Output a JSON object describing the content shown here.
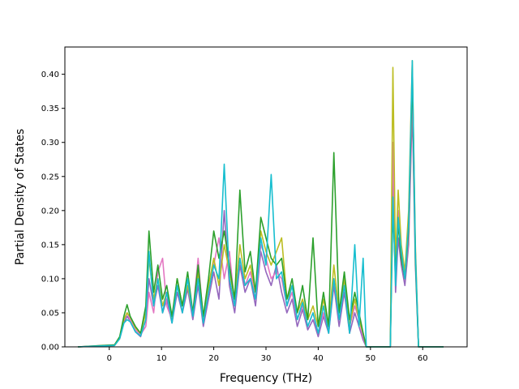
{
  "chart_data": {
    "type": "line",
    "title": "",
    "xlabel": "Frequency (THz)",
    "ylabel": "Partial Density of States",
    "xlim": [
      -8.5,
      68.5
    ],
    "ylim": [
      0,
      0.44
    ],
    "xticks": [
      0,
      10,
      20,
      30,
      40,
      50,
      60
    ],
    "yticks": [
      0.0,
      0.05,
      0.1,
      0.15,
      0.2,
      0.25,
      0.3,
      0.35,
      0.4
    ],
    "ytick_labels": [
      "0.00",
      "0.05",
      "0.10",
      "0.15",
      "0.20",
      "0.25",
      "0.30",
      "0.35",
      "0.40"
    ],
    "grid": false,
    "legend": "none",
    "series_colors": [
      "#9467bd",
      "#8c564b",
      "#e377c2",
      "#7f7f7f",
      "#ff7f0e",
      "#bcbd22",
      "#2ca02c",
      "#17becf"
    ],
    "series": [
      {
        "color": "#9467bd",
        "x": [
          -6,
          1,
          2,
          2.8,
          3.4,
          4,
          5,
          6,
          7,
          7.6,
          8.5,
          9.3,
          10.2,
          11,
          12,
          13,
          14,
          15,
          16,
          17,
          18,
          19,
          20,
          21,
          22,
          23,
          24,
          25,
          26,
          27,
          28,
          29,
          30,
          31,
          32,
          33,
          34,
          35,
          36,
          37,
          38,
          39,
          40,
          41,
          42,
          43,
          44,
          45,
          46,
          47,
          47.8,
          48.6,
          49.2,
          53.8,
          54.3,
          54.8,
          55.3,
          55.9,
          56.6,
          57.3,
          58,
          58.6,
          59.2,
          64
        ],
        "values": [
          0,
          0.002,
          0.012,
          0.035,
          0.045,
          0.038,
          0.022,
          0.015,
          0.04,
          0.1,
          0.06,
          0.09,
          0.05,
          0.07,
          0.035,
          0.08,
          0.05,
          0.085,
          0.04,
          0.09,
          0.03,
          0.07,
          0.11,
          0.07,
          0.2,
          0.09,
          0.05,
          0.12,
          0.08,
          0.1,
          0.06,
          0.14,
          0.11,
          0.09,
          0.12,
          0.08,
          0.05,
          0.07,
          0.03,
          0.055,
          0.025,
          0.04,
          0.015,
          0.045,
          0.02,
          0.09,
          0.03,
          0.08,
          0.02,
          0.05,
          0.03,
          0.01,
          0,
          0,
          0.25,
          0.08,
          0.16,
          0.12,
          0.09,
          0.15,
          0.35,
          0.12,
          0,
          0
        ]
      },
      {
        "color": "#e377c2",
        "x": [
          -6,
          1,
          2,
          2.8,
          3.4,
          4,
          5,
          6,
          7,
          7.6,
          8.5,
          9.3,
          10.2,
          11,
          12,
          13,
          14,
          15,
          16,
          17,
          18,
          19,
          20,
          21,
          22,
          23,
          24,
          25,
          26,
          27,
          28,
          29,
          30,
          31,
          32,
          33,
          34,
          35,
          36,
          37,
          38,
          39,
          40,
          41,
          42,
          43,
          44,
          45,
          46,
          47,
          47.8,
          48.6,
          49.2,
          53.8,
          54.3,
          54.8,
          55.3,
          55.9,
          56.6,
          57.3,
          58,
          58.6,
          59.2,
          64
        ],
        "values": [
          0,
          0.003,
          0.014,
          0.04,
          0.05,
          0.04,
          0.025,
          0.018,
          0.03,
          0.08,
          0.05,
          0.11,
          0.13,
          0.06,
          0.04,
          0.09,
          0.06,
          0.1,
          0.05,
          0.13,
          0.04,
          0.08,
          0.12,
          0.16,
          0.1,
          0.14,
          0.06,
          0.13,
          0.09,
          0.11,
          0.07,
          0.15,
          0.13,
          0.1,
          0.11,
          0.1,
          0.06,
          0.08,
          0.04,
          0.06,
          0.03,
          0.05,
          0.02,
          0.05,
          0.025,
          0.1,
          0.04,
          0.09,
          0.03,
          0.06,
          0.04,
          0.015,
          0,
          0,
          0.3,
          0.1,
          0.2,
          0.14,
          0.1,
          0.16,
          0.37,
          0.14,
          0,
          0
        ]
      },
      {
        "color": "#bcbd22",
        "x": [
          -6,
          1,
          2,
          2.8,
          3.4,
          4,
          5,
          6,
          7,
          7.6,
          8.5,
          9.3,
          10.2,
          11,
          12,
          13,
          14,
          15,
          16,
          17,
          18,
          19,
          20,
          21,
          22,
          23,
          24,
          25,
          26,
          27,
          28,
          29,
          30,
          31,
          32,
          33,
          34,
          35,
          36,
          37,
          38,
          39,
          40,
          41,
          42,
          43,
          44,
          45,
          46,
          47,
          47.8,
          48.6,
          49.2,
          53.8,
          54.3,
          54.8,
          55.3,
          55.9,
          56.6,
          57.3,
          58,
          58.6,
          59.2,
          64
        ],
        "values": [
          0,
          0.002,
          0.012,
          0.04,
          0.05,
          0.044,
          0.028,
          0.02,
          0.05,
          0.13,
          0.07,
          0.1,
          0.06,
          0.08,
          0.04,
          0.1,
          0.06,
          0.09,
          0.05,
          0.11,
          0.04,
          0.09,
          0.13,
          0.09,
          0.15,
          0.11,
          0.07,
          0.15,
          0.1,
          0.12,
          0.08,
          0.17,
          0.14,
          0.12,
          0.14,
          0.16,
          0.07,
          0.09,
          0.05,
          0.07,
          0.04,
          0.06,
          0.03,
          0.07,
          0.03,
          0.12,
          0.05,
          0.1,
          0.03,
          0.07,
          0.04,
          0.02,
          0,
          0,
          0.41,
          0.12,
          0.23,
          0.15,
          0.11,
          0.2,
          0.42,
          0.15,
          0,
          0
        ]
      },
      {
        "color": "#2ca02c",
        "x": [
          -6,
          1,
          2,
          2.8,
          3.4,
          4,
          5,
          6,
          7,
          7.6,
          8.5,
          9.3,
          10.2,
          11,
          12,
          13,
          14,
          15,
          16,
          17,
          18,
          19,
          20,
          21,
          22,
          23,
          24,
          25,
          26,
          27,
          28,
          29,
          30,
          31,
          32,
          33,
          34,
          35,
          36,
          37,
          38,
          39,
          40,
          41,
          42,
          43,
          44,
          45,
          46,
          47,
          47.8,
          48.6,
          49.2,
          53.8,
          54.3,
          54.8,
          55.3,
          55.9,
          56.6,
          57.3,
          58,
          58.6,
          59.2,
          64
        ],
        "values": [
          0,
          0.003,
          0.015,
          0.045,
          0.062,
          0.045,
          0.03,
          0.02,
          0.06,
          0.17,
          0.08,
          0.12,
          0.07,
          0.09,
          0.045,
          0.1,
          0.06,
          0.11,
          0.05,
          0.12,
          0.045,
          0.1,
          0.17,
          0.13,
          0.17,
          0.12,
          0.07,
          0.23,
          0.11,
          0.14,
          0.08,
          0.19,
          0.16,
          0.13,
          0.12,
          0.13,
          0.07,
          0.1,
          0.05,
          0.09,
          0.04,
          0.16,
          0.03,
          0.08,
          0.03,
          0.285,
          0.05,
          0.11,
          0.04,
          0.08,
          0.05,
          0.02,
          0,
          0,
          0.2,
          0.11,
          0.18,
          0.13,
          0.1,
          0.17,
          0.4,
          0.13,
          0,
          0
        ]
      },
      {
        "color": "#17becf",
        "x": [
          -6,
          1,
          2,
          2.8,
          3.4,
          4,
          5,
          6,
          7,
          7.6,
          8.5,
          9.3,
          10.2,
          11,
          12,
          13,
          14,
          15,
          16,
          17,
          18,
          19,
          20,
          21,
          22,
          23,
          24,
          25,
          26,
          27,
          28,
          29,
          30,
          31,
          32,
          33,
          34,
          35,
          36,
          37,
          38,
          39,
          40,
          41,
          42,
          43,
          44,
          45,
          46,
          47,
          47.8,
          48.6,
          49.2,
          53.8,
          54.3,
          54.8,
          55.3,
          55.9,
          56.6,
          57.3,
          58,
          58.6,
          59.2,
          64
        ],
        "values": [
          0,
          0.002,
          0.012,
          0.035,
          0.04,
          0.037,
          0.022,
          0.016,
          0.04,
          0.14,
          0.06,
          0.1,
          0.05,
          0.08,
          0.035,
          0.09,
          0.05,
          0.1,
          0.045,
          0.1,
          0.035,
          0.08,
          0.12,
          0.1,
          0.268,
          0.1,
          0.06,
          0.13,
          0.09,
          0.1,
          0.07,
          0.16,
          0.12,
          0.253,
          0.1,
          0.11,
          0.06,
          0.09,
          0.04,
          0.065,
          0.03,
          0.05,
          0.02,
          0.06,
          0.02,
          0.1,
          0.04,
          0.09,
          0.02,
          0.15,
          0.03,
          0.13,
          0,
          0,
          0.22,
          0.09,
          0.19,
          0.14,
          0.1,
          0.18,
          0.42,
          0.14,
          0,
          0
        ]
      }
    ]
  }
}
